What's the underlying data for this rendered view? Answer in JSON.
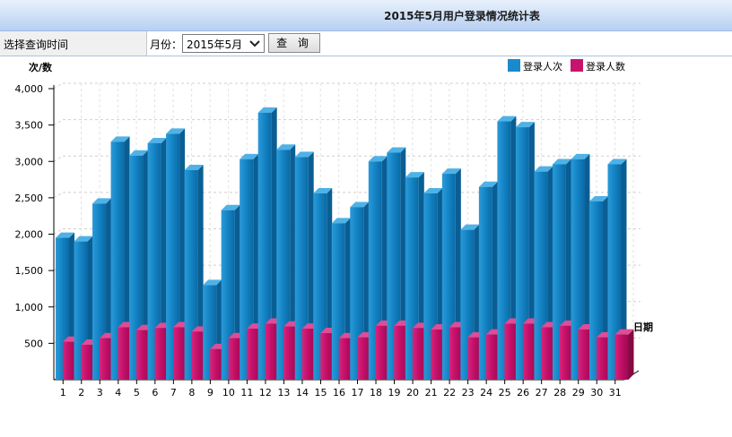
{
  "header": {
    "title": "2015年5月用户登录情况统计表"
  },
  "query": {
    "label": "选择查询时间",
    "month_label": "月份：",
    "month_value": "2015年5月",
    "button_label": "查 询"
  },
  "chart_data": {
    "type": "bar",
    "ylabel": "次/数",
    "xlabel": "日期",
    "ylim": [
      0,
      4000
    ],
    "yticks": [
      "4,000",
      "3,500",
      "3,000",
      "2,500",
      "2,000",
      "1,500",
      "1,000",
      "500"
    ],
    "ytick_values": [
      4000,
      3500,
      3000,
      2500,
      2000,
      1500,
      1000,
      500
    ],
    "grid": true,
    "legend_position": "top-right",
    "categories": [
      "1",
      "2",
      "3",
      "4",
      "5",
      "6",
      "7",
      "8",
      "9",
      "10",
      "11",
      "12",
      "13",
      "14",
      "15",
      "16",
      "17",
      "18",
      "19",
      "20",
      "21",
      "22",
      "23",
      "24",
      "25",
      "26",
      "27",
      "28",
      "29",
      "30",
      "31"
    ],
    "series": [
      {
        "name": "登录人次",
        "color": "#1a8acb",
        "values": [
          1950,
          1900,
          2420,
          3270,
          3080,
          3250,
          3380,
          2880,
          1300,
          2330,
          3030,
          3670,
          3160,
          3060,
          2560,
          2150,
          2370,
          3000,
          3120,
          2780,
          2560,
          2830,
          2060,
          2650,
          3550,
          3470,
          2860,
          2960,
          3030,
          2450,
          2960
        ]
      },
      {
        "name": "登录人数",
        "color": "#c8136e",
        "values": [
          520,
          480,
          570,
          720,
          680,
          710,
          720,
          660,
          420,
          570,
          700,
          770,
          730,
          700,
          640,
          570,
          580,
          740,
          740,
          710,
          690,
          720,
          580,
          620,
          770,
          770,
          720,
          740,
          690,
          580,
          620
        ]
      }
    ]
  }
}
